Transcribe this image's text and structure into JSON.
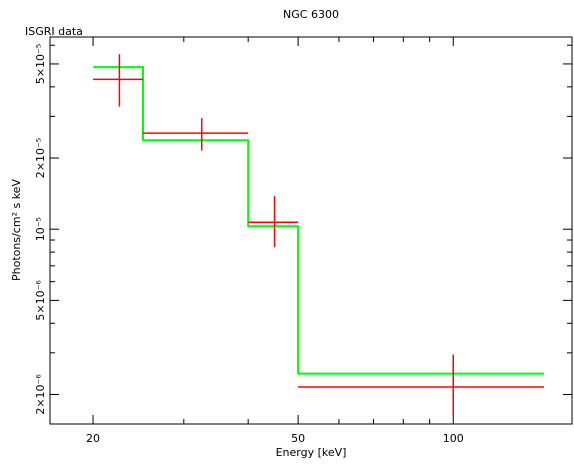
{
  "chart_data": {
    "type": "line",
    "title": "NGC 6300",
    "subtitle": "ISGRI data",
    "xlabel": "Energy [keV]",
    "ylabel": "Photons/cm² s keV",
    "x_scale": "log",
    "y_scale": "log",
    "xlim": [
      16.5,
      170
    ],
    "ylim": [
      1.5e-06,
      6.5e-05
    ],
    "x_ticks": [
      {
        "value": 20,
        "label": "20"
      },
      {
        "value": 50,
        "label": "50"
      },
      {
        "value": 100,
        "label": "100"
      }
    ],
    "y_ticks": [
      {
        "value": 2e-06,
        "label": "2×10⁻⁶"
      },
      {
        "value": 5e-06,
        "label": "5×10⁻⁶"
      },
      {
        "value": 1e-05,
        "label": "10⁻⁵"
      },
      {
        "value": 2e-05,
        "label": "2×10⁻⁵"
      },
      {
        "value": 5e-05,
        "label": "5×10⁻⁵"
      }
    ],
    "series": [
      {
        "color": "#ff0000",
        "style": "error-crosses",
        "points": [
          {
            "x": 22.5,
            "xlo": 20,
            "xhi": 25,
            "y": 4.3e-05,
            "ylo": 3.3e-05,
            "yhi": 5.5e-05
          },
          {
            "x": 32.5,
            "xlo": 25,
            "xhi": 40,
            "y": 2.55e-05,
            "ylo": 2.15e-05,
            "yhi": 2.95e-05
          },
          {
            "x": 45,
            "xlo": 40,
            "xhi": 50,
            "y": 1.07e-05,
            "ylo": 8.4e-06,
            "yhi": 1.38e-05
          },
          {
            "x": 100,
            "xlo": 50,
            "xhi": 150,
            "y": 2.15e-06,
            "ylo": 1.62e-06,
            "yhi": 2.95e-06
          }
        ]
      },
      {
        "color": "#00ff00",
        "style": "step-model",
        "bins": [
          {
            "xlo": 20,
            "xhi": 25,
            "y": 4.85e-05
          },
          {
            "xlo": 25,
            "xhi": 40,
            "y": 2.38e-05
          },
          {
            "xlo": 40,
            "xhi": 50,
            "y": 1.03e-05
          },
          {
            "xlo": 50,
            "xhi": 150,
            "y": 2.45e-06
          }
        ]
      }
    ]
  }
}
